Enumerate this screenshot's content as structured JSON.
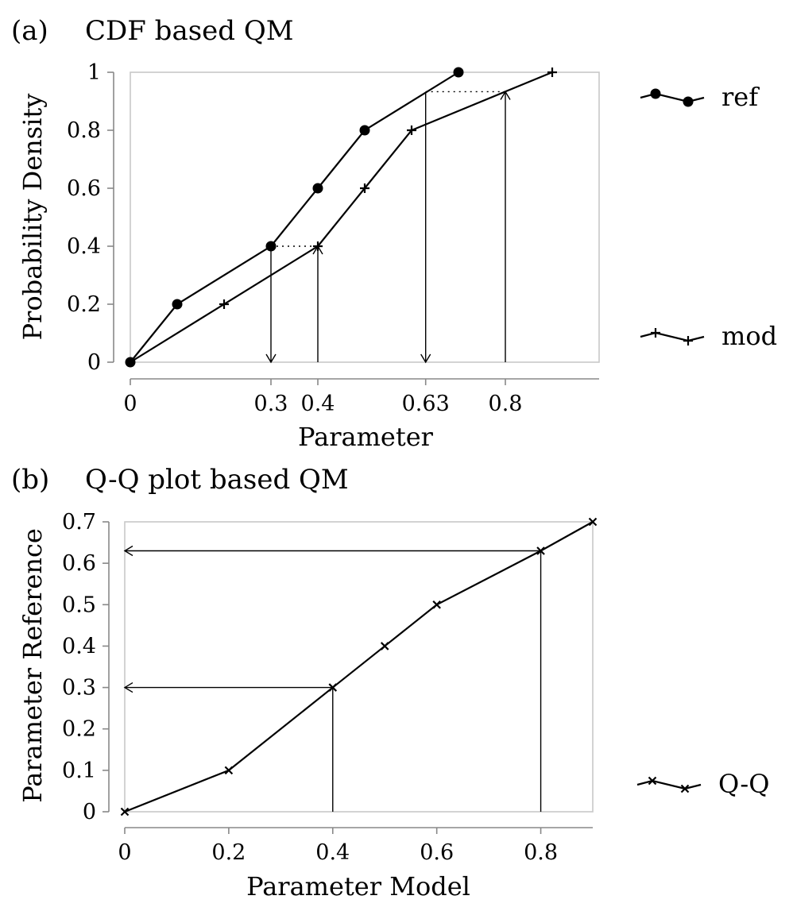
{
  "chart_data": [
    {
      "type": "line",
      "panel_label": "(a)",
      "title": "CDF based QM",
      "xlabel": "Parameter",
      "ylabel": "Probability Density",
      "xlim": [
        0,
        1.0
      ],
      "ylim": [
        0,
        1
      ],
      "xticks": [
        {
          "value": 0,
          "label": "0"
        },
        {
          "value": 0.3,
          "label": "0.3"
        },
        {
          "value": 0.4,
          "label": "0.4"
        },
        {
          "value": 0.63,
          "label": "0.63"
        },
        {
          "value": 0.8,
          "label": "0.8"
        }
      ],
      "yticks": [
        {
          "value": 0,
          "label": "0"
        },
        {
          "value": 0.2,
          "label": "0.2"
        },
        {
          "value": 0.4,
          "label": "0.4"
        },
        {
          "value": 0.6,
          "label": "0.6"
        },
        {
          "value": 0.8,
          "label": "0.8"
        },
        {
          "value": 1,
          "label": "1"
        }
      ],
      "series": [
        {
          "name": "ref",
          "marker": "circle",
          "x": [
            0,
            0.1,
            0.3,
            0.4,
            0.5,
            0.7
          ],
          "y": [
            0,
            0.2,
            0.4,
            0.6,
            0.8,
            1.0
          ]
        },
        {
          "name": "mod",
          "marker": "plus",
          "x": [
            0,
            0.2,
            0.4,
            0.5,
            0.6,
            0.9
          ],
          "y": [
            0,
            0.2,
            0.4,
            0.6,
            0.8,
            1.0
          ]
        }
      ],
      "annotations": [
        {
          "kind": "arrow-down",
          "x": 0.3,
          "y_from": 0.4,
          "y_to": 0
        },
        {
          "kind": "arrow-up",
          "x": 0.4,
          "y_from": 0,
          "y_to": 0.4
        },
        {
          "kind": "arrow-down",
          "x": 0.63,
          "y_from": 0.933,
          "y_to": 0
        },
        {
          "kind": "arrow-up",
          "x": 0.8,
          "y_from": 0,
          "y_to": 0.933
        },
        {
          "kind": "dotted",
          "x_from": 0.3,
          "x_to": 0.4,
          "y": 0.4
        },
        {
          "kind": "dotted",
          "x_from": 0.63,
          "x_to": 0.8,
          "y": 0.933
        }
      ],
      "legend": {
        "placement": "right",
        "entries": [
          "ref",
          "mod"
        ]
      },
      "grid": false
    },
    {
      "type": "line",
      "panel_label": "(b)",
      "title": "Q-Q plot based QM",
      "xlabel": "Parameter Model",
      "ylabel": "Parameter Reference",
      "xlim": [
        0,
        0.9
      ],
      "ylim": [
        0,
        0.7
      ],
      "xticks": [
        {
          "value": 0,
          "label": "0"
        },
        {
          "value": 0.2,
          "label": "0.2"
        },
        {
          "value": 0.4,
          "label": "0.4"
        },
        {
          "value": 0.6,
          "label": "0.6"
        },
        {
          "value": 0.8,
          "label": "0.8"
        }
      ],
      "yticks": [
        {
          "value": 0,
          "label": "0"
        },
        {
          "value": 0.1,
          "label": "0.1"
        },
        {
          "value": 0.2,
          "label": "0.2"
        },
        {
          "value": 0.3,
          "label": "0.3"
        },
        {
          "value": 0.4,
          "label": "0.4"
        },
        {
          "value": 0.5,
          "label": "0.5"
        },
        {
          "value": 0.6,
          "label": "0.6"
        },
        {
          "value": 0.7,
          "label": "0.7"
        }
      ],
      "series": [
        {
          "name": "Q-Q",
          "marker": "x",
          "x": [
            0,
            0.2,
            0.4,
            0.5,
            0.6,
            0.8,
            0.9
          ],
          "y": [
            0,
            0.1,
            0.3,
            0.4,
            0.5,
            0.63,
            0.7
          ]
        }
      ],
      "annotations": [
        {
          "kind": "vline",
          "x": 0.4,
          "y_from": 0,
          "y_to": 0.3
        },
        {
          "kind": "arrow-left",
          "y": 0.3,
          "x_from": 0.4,
          "x_to": 0
        },
        {
          "kind": "vline",
          "x": 0.8,
          "y_from": 0,
          "y_to": 0.63
        },
        {
          "kind": "arrow-left",
          "y": 0.63,
          "x_from": 0.8,
          "x_to": 0
        }
      ],
      "legend": {
        "placement": "right",
        "entries": [
          "Q-Q"
        ]
      },
      "grid": false
    }
  ]
}
